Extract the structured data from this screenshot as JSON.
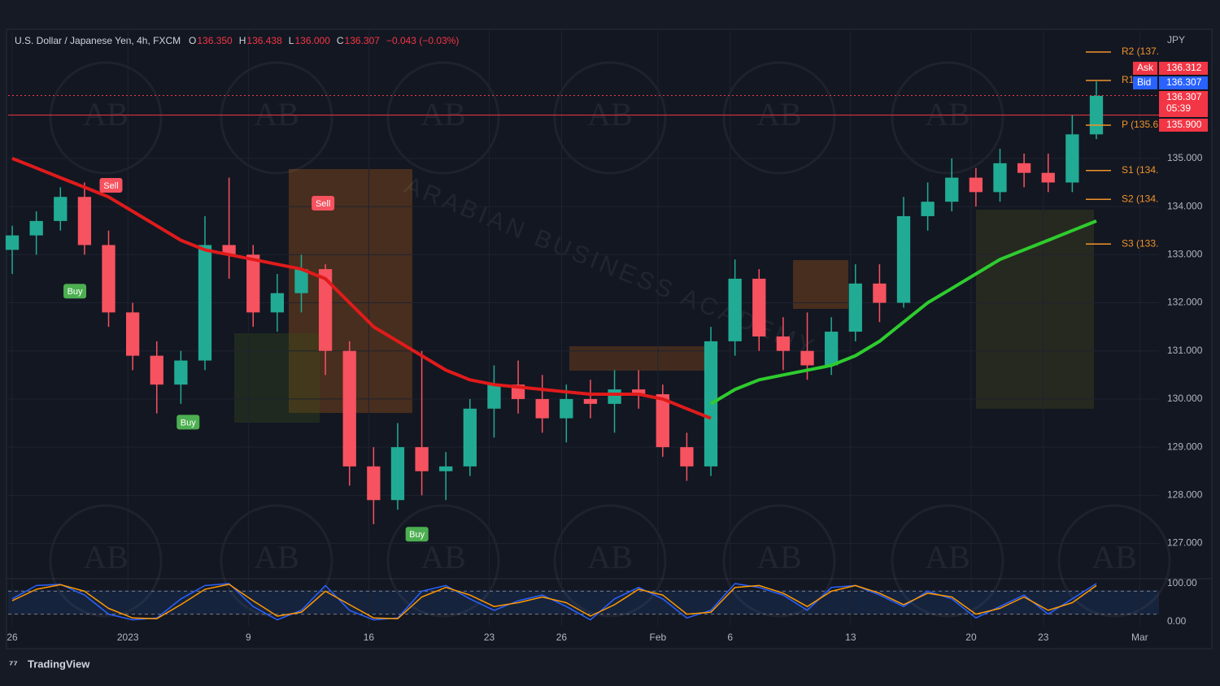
{
  "chart_data": {
    "type": "candlestick",
    "title": "U.S. Dollar / Japanese Yen, 4h, FXCM",
    "header_items": [
      {
        "label": "O",
        "text": "136.350"
      },
      {
        "label": "H",
        "text": "136.438"
      },
      {
        "label": "L",
        "text": "136.000"
      },
      {
        "label": "C",
        "text": "136.307"
      },
      {
        "label": "",
        "text": "−0.043 (−0.03%)"
      }
    ],
    "currency": "JPY",
    "categories": [
      null,
      null,
      null,
      null,
      null,
      null,
      null,
      null,
      null,
      null,
      null,
      null,
      null,
      null,
      null,
      null,
      null,
      null,
      null,
      null,
      null,
      null,
      null,
      null,
      null,
      null,
      null,
      null,
      null,
      null,
      null,
      null,
      null,
      null,
      null,
      null,
      null,
      null,
      null,
      null,
      null,
      null,
      null,
      null,
      null,
      null
    ],
    "open": [
      133.1,
      133.4,
      133.7,
      134.2,
      133.2,
      131.8,
      130.9,
      130.3,
      130.8,
      133.2,
      133.0,
      131.8,
      132.2,
      132.7,
      131.0,
      128.6,
      127.9,
      129.0,
      128.5,
      128.6,
      129.8,
      130.3,
      130.0,
      129.6,
      130.0,
      129.9,
      130.2,
      130.1,
      129.0,
      128.6,
      131.2,
      132.5,
      131.3,
      131.0,
      130.7,
      131.4,
      132.4,
      132.0,
      133.8,
      134.1,
      134.6,
      134.3,
      134.9,
      134.7,
      134.5,
      135.5
    ],
    "high": [
      133.6,
      133.9,
      134.4,
      134.5,
      133.5,
      132.0,
      131.2,
      131.0,
      133.8,
      134.6,
      133.2,
      132.6,
      133.0,
      132.8,
      131.2,
      129.0,
      129.5,
      131.0,
      128.9,
      130.0,
      130.7,
      130.8,
      130.5,
      130.3,
      130.4,
      130.6,
      130.6,
      130.3,
      129.3,
      131.5,
      132.9,
      132.7,
      131.7,
      131.8,
      131.7,
      132.8,
      132.8,
      134.2,
      134.5,
      135.0,
      134.8,
      135.2,
      135.1,
      135.1,
      135.9,
      136.6
    ],
    "low": [
      132.6,
      133.0,
      133.5,
      133.0,
      131.5,
      130.6,
      129.7,
      129.9,
      130.6,
      132.5,
      131.5,
      131.4,
      131.8,
      130.5,
      128.2,
      127.4,
      127.7,
      128.0,
      127.9,
      128.4,
      129.2,
      129.7,
      129.3,
      129.1,
      129.6,
      129.3,
      129.8,
      128.8,
      128.3,
      128.4,
      130.9,
      131.0,
      130.6,
      130.4,
      130.5,
      131.2,
      131.6,
      131.9,
      133.5,
      133.9,
      134.0,
      134.1,
      134.4,
      134.3,
      134.3,
      135.4
    ],
    "close": [
      133.4,
      133.7,
      134.2,
      133.2,
      131.8,
      130.9,
      130.3,
      130.8,
      133.2,
      133.0,
      131.8,
      132.2,
      132.7,
      131.0,
      128.6,
      127.9,
      129.0,
      128.5,
      128.6,
      129.8,
      130.3,
      130.0,
      129.6,
      130.0,
      129.9,
      130.2,
      130.1,
      129.0,
      128.6,
      131.2,
      132.5,
      131.3,
      131.0,
      130.7,
      131.4,
      132.4,
      132.0,
      133.8,
      134.1,
      134.6,
      134.3,
      134.9,
      134.7,
      134.5,
      135.5,
      136.3
    ],
    "up_color": "#22ab94",
    "down_color": "#f7525f",
    "series": [
      {
        "color": "#e01b1b",
        "values": [
          135.0,
          134.8,
          134.6,
          134.4,
          134.2,
          133.9,
          133.6,
          133.3,
          133.1,
          133.0,
          132.9,
          132.8,
          132.7,
          132.5,
          132.0,
          131.5,
          131.2,
          130.9,
          130.6,
          130.4,
          130.3,
          130.25,
          130.2,
          130.15,
          130.1,
          130.1,
          130.1,
          130.0,
          129.8,
          129.6,
          null,
          null,
          null,
          null,
          null,
          null,
          null,
          null,
          null,
          null,
          null,
          null,
          null,
          null,
          null,
          null
        ]
      },
      {
        "color": "#2ecc2e",
        "values": [
          null,
          null,
          null,
          null,
          null,
          null,
          null,
          null,
          null,
          null,
          null,
          null,
          null,
          null,
          null,
          null,
          null,
          null,
          null,
          null,
          null,
          null,
          null,
          null,
          null,
          null,
          null,
          null,
          null,
          129.9,
          130.2,
          130.4,
          130.5,
          130.6,
          130.7,
          130.9,
          131.2,
          131.6,
          132.0,
          132.3,
          132.6,
          132.9,
          133.1,
          133.3,
          133.5,
          133.7
        ]
      }
    ],
    "ylim": [
      126.3,
      137.65
    ],
    "yticks": [
      {
        "value": 127,
        "label": "127.000"
      },
      {
        "value": 128,
        "label": "128.000"
      },
      {
        "value": 129,
        "label": "129.000"
      },
      {
        "value": 130,
        "label": "130.000"
      },
      {
        "value": 131,
        "label": "131.000"
      },
      {
        "value": 132,
        "label": "132.000"
      },
      {
        "value": 133,
        "label": "133.000"
      },
      {
        "value": 134,
        "label": "134.000"
      },
      {
        "value": 135,
        "label": "135.000"
      }
    ],
    "xlim": [
      -0.17,
      47.6
    ],
    "xticks": [
      {
        "value": 0,
        "label": "26"
      },
      {
        "value": 4.8,
        "label": "2023"
      },
      {
        "value": 9.8,
        "label": "9"
      },
      {
        "value": 14.8,
        "label": "16"
      },
      {
        "value": 19.8,
        "label": "23"
      },
      {
        "value": 22.8,
        "label": "26"
      },
      {
        "value": 26.8,
        "label": "Feb"
      },
      {
        "value": 29.8,
        "label": "6"
      },
      {
        "value": 34.8,
        "label": "13"
      },
      {
        "value": 39.8,
        "label": "20"
      },
      {
        "value": 42.8,
        "label": "23"
      },
      {
        "value": 46.8,
        "label": "Mar"
      }
    ],
    "grid": true,
    "levels": [
      {
        "value": 136.307,
        "color": "#f23645",
        "style": "dotted"
      },
      {
        "value": 135.9,
        "color": "#f23645",
        "style": "solid"
      }
    ],
    "pivots": [
      {
        "label": "R2 (137.",
        "value": 137.21
      },
      {
        "label": "R1",
        "value": 136.62
      },
      {
        "label": "P (135.6",
        "value": 135.69
      },
      {
        "label": "S1 (134.",
        "value": 134.75
      },
      {
        "label": "S2 (134.",
        "value": 134.15
      },
      {
        "label": "S3 (133.",
        "value": 133.22
      }
    ],
    "pivot_color": "#f0932b",
    "signals": [
      {
        "label": "Sell",
        "x": 4.1,
        "price": 134.44,
        "color": "#f7525f"
      },
      {
        "label": "Sell",
        "x": 12.9,
        "price": 134.07,
        "color": "#f7525f"
      },
      {
        "label": "Buy",
        "x": 2.6,
        "price": 132.24,
        "color": "#4caf50"
      },
      {
        "label": "Buy",
        "x": 7.3,
        "price": 129.52,
        "color": "#4caf50"
      },
      {
        "label": "Buy",
        "x": 16.8,
        "price": 127.19,
        "color": "#4caf50"
      }
    ],
    "price_tags": [
      {
        "name": "Ask",
        "label": "136.312",
        "color": "#f23645"
      },
      {
        "name": "Bid",
        "label": "136.307",
        "color": "#2962ff"
      },
      {
        "name": "05:39",
        "label": "136.307",
        "color": "#f23645"
      },
      {
        "name": "",
        "label": "135.900",
        "color": "#f23645"
      }
    ],
    "oscillator": {
      "ylim": [
        0,
        100
      ],
      "yticks": [
        {
          "value": 100,
          "label": "100.00"
        },
        {
          "value": 0,
          "label": "0.00"
        }
      ],
      "bands": [
        80,
        20
      ],
      "series": [
        {
          "color": "#2962ff",
          "values": [
            60,
            95,
            98,
            70,
            20,
            5,
            10,
            60,
            95,
            100,
            40,
            5,
            30,
            95,
            30,
            5,
            10,
            80,
            95,
            60,
            30,
            55,
            70,
            40,
            5,
            60,
            90,
            60,
            10,
            30,
            100,
            90,
            70,
            30,
            90,
            95,
            70,
            40,
            80,
            60,
            10,
            40,
            70,
            20,
            60,
            100
          ]
        },
        {
          "color": "#ff9800",
          "values": [
            55,
            85,
            97,
            80,
            35,
            10,
            8,
            45,
            85,
            98,
            55,
            15,
            25,
            80,
            45,
            10,
            8,
            65,
            90,
            70,
            40,
            50,
            65,
            50,
            15,
            45,
            85,
            70,
            20,
            25,
            90,
            95,
            75,
            40,
            80,
            95,
            75,
            45,
            75,
            65,
            20,
            35,
            65,
            30,
            50,
            95
          ]
        }
      ]
    },
    "watermark": "AB",
    "watermark_text": "ARABIAN BUSINESS ACADEMY",
    "brand": "TradingView"
  }
}
